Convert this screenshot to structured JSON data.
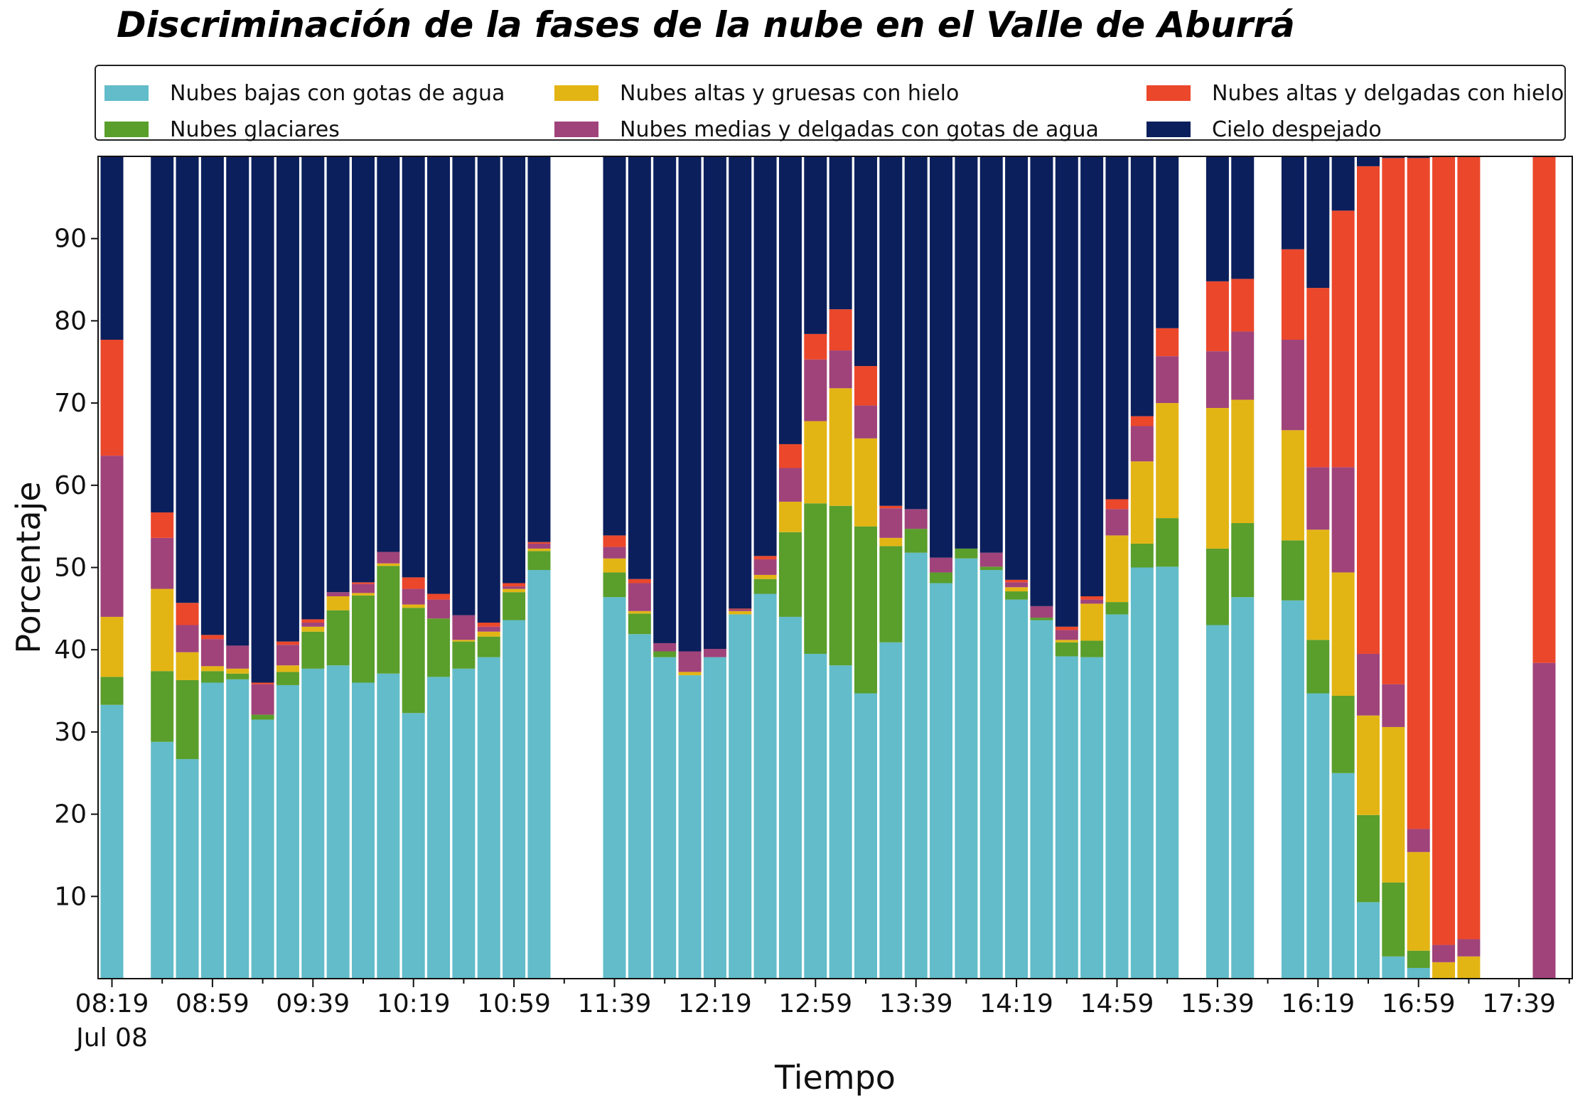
{
  "chart_data": {
    "type": "bar",
    "stacked": true,
    "title": "Discriminación de la fases de la nube en el Valle de Aburrá",
    "xlabel": "Tiempo",
    "ylabel": "Porcentaje",
    "ylim": [
      0,
      100
    ],
    "yticks": [
      10,
      20,
      30,
      40,
      50,
      60,
      70,
      80,
      90
    ],
    "xtick_labels": [
      "08:19",
      "08:59",
      "09:39",
      "10:19",
      "10:59",
      "11:39",
      "12:19",
      "12:59",
      "13:39",
      "14:19",
      "14:59",
      "15:39",
      "16:19",
      "16:59",
      "17:39"
    ],
    "xtick_sublabel": "Jul 08",
    "legend_position": "top",
    "grid": false,
    "series": [
      {
        "name": "Nubes bajas con gotas de agua",
        "color": "#62bcc9"
      },
      {
        "name": "Nubes glaciares",
        "color": "#5a9e2b"
      },
      {
        "name": "Nubes altas y gruesas con hielo",
        "color": "#e3b514"
      },
      {
        "name": "Nubes medias y delgadas con gotas de agua",
        "color": "#a0437a"
      },
      {
        "name": "Nubes altas y delgadas con hielo",
        "color": "#eb472b"
      },
      {
        "name": "Cielo despejado",
        "color": "#0b1f5c"
      }
    ],
    "bars": [
      {
        "t": 0,
        "values": [
          33.3,
          3.4,
          7.3,
          19.6,
          14.1,
          22.3
        ]
      },
      {
        "t": 2,
        "values": [
          28.8,
          8.6,
          10.0,
          6.2,
          3.1,
          43.3
        ]
      },
      {
        "t": 3,
        "values": [
          26.7,
          9.6,
          3.4,
          3.3,
          2.7,
          54.3
        ]
      },
      {
        "t": 4,
        "values": [
          36.0,
          1.4,
          0.6,
          3.3,
          0.5,
          58.2
        ]
      },
      {
        "t": 5,
        "values": [
          36.4,
          0.7,
          0.6,
          2.8,
          0.0,
          59.5
        ]
      },
      {
        "t": 6,
        "values": [
          31.5,
          0.6,
          0.0,
          3.7,
          0.2,
          64.0
        ]
      },
      {
        "t": 7,
        "values": [
          35.7,
          1.6,
          0.8,
          2.5,
          0.4,
          59.0
        ]
      },
      {
        "t": 8,
        "values": [
          37.7,
          4.5,
          0.6,
          0.5,
          0.4,
          56.3
        ]
      },
      {
        "t": 9,
        "values": [
          38.1,
          6.7,
          1.7,
          0.5,
          0.0,
          53.0
        ]
      },
      {
        "t": 10,
        "values": [
          36.0,
          10.6,
          0.3,
          1.1,
          0.2,
          51.8
        ]
      },
      {
        "t": 11,
        "values": [
          37.1,
          13.1,
          0.3,
          1.4,
          0.0,
          48.1
        ]
      },
      {
        "t": 12,
        "values": [
          32.3,
          12.8,
          0.4,
          1.9,
          1.4,
          51.2
        ]
      },
      {
        "t": 13,
        "values": [
          36.7,
          7.1,
          0.0,
          2.3,
          0.7,
          53.2
        ]
      },
      {
        "t": 14,
        "values": [
          37.7,
          3.3,
          0.2,
          3.0,
          0.0,
          55.8
        ]
      },
      {
        "t": 15,
        "values": [
          39.1,
          2.5,
          0.6,
          0.6,
          0.5,
          56.7
        ]
      },
      {
        "t": 16,
        "values": [
          43.6,
          3.4,
          0.4,
          0.3,
          0.4,
          51.9
        ]
      },
      {
        "t": 17,
        "values": [
          49.7,
          2.3,
          0.3,
          0.6,
          0.2,
          46.9
        ]
      },
      {
        "t": 20,
        "values": [
          46.4,
          3.0,
          1.7,
          1.4,
          1.4,
          46.1
        ]
      },
      {
        "t": 21,
        "values": [
          41.9,
          2.5,
          0.3,
          3.4,
          0.5,
          51.4
        ]
      },
      {
        "t": 22,
        "values": [
          39.1,
          0.7,
          0.0,
          1.0,
          0.0,
          59.2
        ]
      },
      {
        "t": 23,
        "values": [
          36.9,
          0.0,
          0.4,
          2.5,
          0.0,
          60.2
        ]
      },
      {
        "t": 24,
        "values": [
          39.1,
          0.0,
          0.0,
          1.0,
          0.0,
          59.9
        ]
      },
      {
        "t": 25,
        "values": [
          44.3,
          0.0,
          0.4,
          0.2,
          0.1,
          55.0
        ]
      },
      {
        "t": 26,
        "values": [
          46.8,
          1.8,
          0.5,
          1.9,
          0.4,
          48.6
        ]
      },
      {
        "t": 27,
        "values": [
          44.0,
          10.3,
          3.7,
          4.1,
          2.9,
          35.0
        ]
      },
      {
        "t": 28,
        "values": [
          39.5,
          18.3,
          10.0,
          7.5,
          3.1,
          21.6
        ]
      },
      {
        "t": 29,
        "values": [
          38.1,
          19.4,
          14.3,
          4.6,
          5.0,
          18.6
        ]
      },
      {
        "t": 30,
        "values": [
          34.7,
          20.3,
          10.7,
          4.0,
          4.8,
          25.5
        ]
      },
      {
        "t": 31,
        "values": [
          40.9,
          11.7,
          1.0,
          3.6,
          0.3,
          42.5
        ]
      },
      {
        "t": 32,
        "values": [
          51.8,
          2.9,
          0.0,
          2.4,
          0.0,
          42.9
        ]
      },
      {
        "t": 33,
        "values": [
          48.1,
          1.3,
          0.0,
          1.8,
          0.0,
          48.8
        ]
      },
      {
        "t": 34,
        "values": [
          51.1,
          1.2,
          0.0,
          0.0,
          0.0,
          47.7
        ]
      },
      {
        "t": 35,
        "values": [
          49.7,
          0.4,
          0.0,
          1.7,
          0.0,
          48.2
        ]
      },
      {
        "t": 36,
        "values": [
          46.1,
          1.0,
          0.5,
          0.6,
          0.3,
          51.5
        ]
      },
      {
        "t": 37,
        "values": [
          43.6,
          0.3,
          0.0,
          1.4,
          0.0,
          54.7
        ]
      },
      {
        "t": 38,
        "values": [
          39.2,
          1.7,
          0.3,
          1.2,
          0.4,
          57.2
        ]
      },
      {
        "t": 39,
        "values": [
          39.1,
          2.0,
          4.5,
          0.5,
          0.4,
          53.5
        ]
      },
      {
        "t": 40,
        "values": [
          44.3,
          1.5,
          8.1,
          3.2,
          1.2,
          41.7
        ]
      },
      {
        "t": 41,
        "values": [
          50.0,
          2.9,
          10.0,
          4.3,
          1.2,
          31.6
        ]
      },
      {
        "t": 42,
        "values": [
          50.1,
          5.9,
          14.0,
          5.7,
          3.4,
          20.9
        ]
      },
      {
        "t": 44,
        "values": [
          43.0,
          9.3,
          17.1,
          6.9,
          8.5,
          15.2
        ]
      },
      {
        "t": 45,
        "values": [
          46.4,
          9.0,
          15.0,
          8.3,
          6.4,
          14.9
        ]
      },
      {
        "t": 47,
        "values": [
          46.0,
          7.3,
          13.4,
          11.0,
          11.0,
          11.3
        ]
      },
      {
        "t": 48,
        "values": [
          34.7,
          6.5,
          13.4,
          7.6,
          21.8,
          16.0
        ]
      },
      {
        "t": 49,
        "values": [
          25.0,
          9.4,
          15.0,
          12.8,
          31.2,
          6.6
        ]
      },
      {
        "t": 50,
        "values": [
          9.3,
          10.6,
          12.1,
          7.5,
          59.3,
          1.2
        ]
      },
      {
        "t": 51,
        "values": [
          2.7,
          9.0,
          18.9,
          5.2,
          64.0,
          0.2
        ]
      },
      {
        "t": 52,
        "values": [
          1.3,
          2.1,
          12.0,
          2.8,
          81.6,
          0.2
        ]
      },
      {
        "t": 53,
        "values": [
          0.0,
          0.0,
          2.0,
          2.1,
          95.9,
          0.0
        ]
      },
      {
        "t": 54,
        "values": [
          0.0,
          0.0,
          2.7,
          2.1,
          95.2,
          0.0
        ]
      },
      {
        "t": 57,
        "values": [
          0.0,
          0.0,
          0.0,
          38.4,
          61.6,
          0.0
        ]
      }
    ]
  }
}
